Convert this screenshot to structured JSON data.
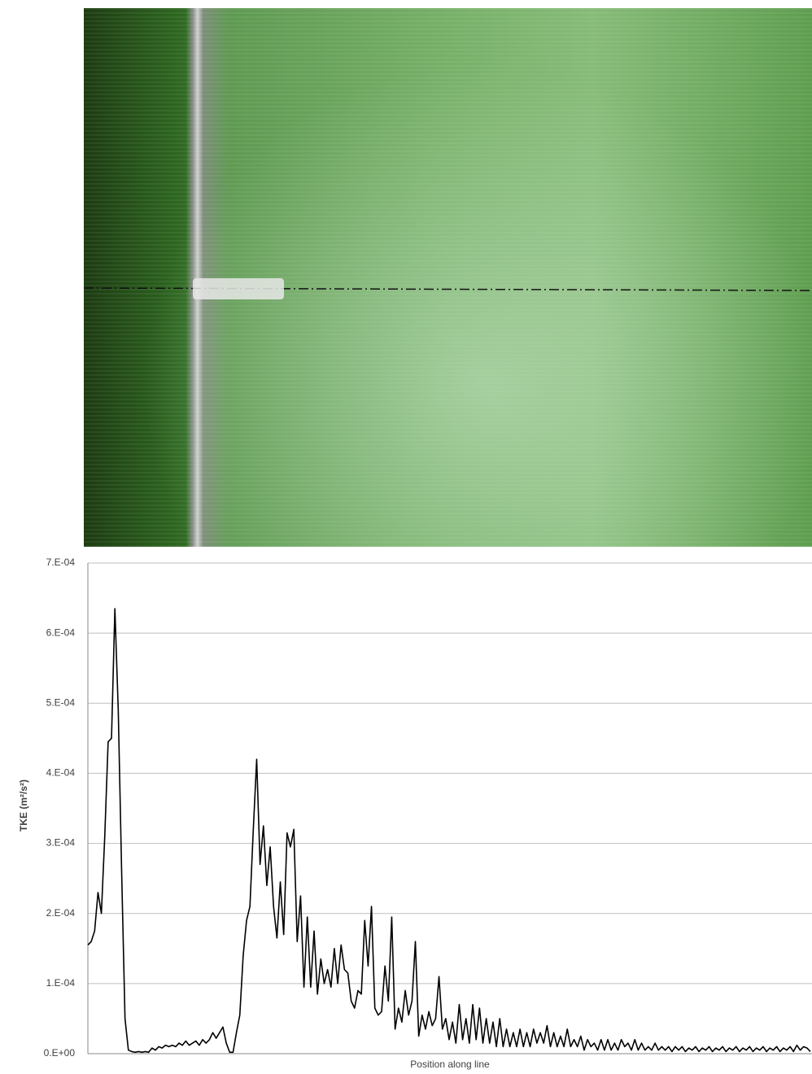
{
  "chart_data": {
    "type": "line",
    "y_label": "TKE (m²/s²)",
    "x_label": "Position along line",
    "ylim": [
      0,
      0.0007
    ],
    "yticks": [
      {
        "value": 0,
        "label": "0.E+00"
      },
      {
        "value": 0.0001,
        "label": "1.E-04"
      },
      {
        "value": 0.0002,
        "label": "2.E-04"
      },
      {
        "value": 0.0003,
        "label": "3.E-04"
      },
      {
        "value": 0.0004,
        "label": "4.E-04"
      },
      {
        "value": 0.0005,
        "label": "5.E-04"
      },
      {
        "value": 0.0006,
        "label": "6.E-04"
      },
      {
        "value": 0.0007,
        "label": "7.E-04"
      }
    ],
    "grid": true,
    "color": "#000000",
    "values": [
      0.000155,
      0.00016,
      0.000175,
      0.00023,
      0.0002,
      0.00031,
      0.000445,
      0.00045,
      0.000635,
      0.00049,
      0.00026,
      5e-05,
      5e-06,
      3e-06,
      2e-06,
      3e-06,
      2e-06,
      3e-06,
      2e-06,
      8e-06,
      5e-06,
      1e-05,
      8e-06,
      1.2e-05,
      1e-05,
      1.2e-05,
      1e-05,
      1.5e-05,
      1.2e-05,
      1.8e-05,
      1.2e-05,
      1.5e-05,
      1.8e-05,
      1.2e-05,
      2e-05,
      1.5e-05,
      2e-05,
      3e-05,
      2.2e-05,
      3e-05,
      3.8e-05,
      1.5e-05,
      2e-06,
      2e-06,
      3e-05,
      5.5e-05,
      0.00014,
      0.00019,
      0.00021,
      0.00032,
      0.00042,
      0.00027,
      0.000325,
      0.00024,
      0.000295,
      0.00021,
      0.000165,
      0.000245,
      0.00017,
      0.000315,
      0.000295,
      0.00032,
      0.00016,
      0.000225,
      9.5e-05,
      0.000195,
      9.5e-05,
      0.000175,
      8.5e-05,
      0.000135,
      0.0001,
      0.00012,
      9.5e-05,
      0.00015,
      0.0001,
      0.000155,
      0.00012,
      0.000115,
      7.5e-05,
      6.5e-05,
      9e-05,
      8.5e-05,
      0.00019,
      0.000125,
      0.00021,
      6.5e-05,
      5.5e-05,
      6e-05,
      0.000125,
      7.5e-05,
      0.000195,
      3.5e-05,
      6.5e-05,
      4.5e-05,
      9e-05,
      5.5e-05,
      7.5e-05,
      0.00016,
      2.5e-05,
      5.5e-05,
      3.5e-05,
      6e-05,
      4e-05,
      5e-05,
      0.00011,
      3.5e-05,
      5e-05,
      2e-05,
      4.5e-05,
      1.5e-05,
      7e-05,
      2e-05,
      5e-05,
      1.5e-05,
      7e-05,
      2e-05,
      6.5e-05,
      1.5e-05,
      5e-05,
      1.5e-05,
      4.5e-05,
      1e-05,
      5e-05,
      1e-05,
      3.5e-05,
      1e-05,
      3e-05,
      1e-05,
      3.5e-05,
      1e-05,
      3e-05,
      1e-05,
      3.5e-05,
      1.5e-05,
      3e-05,
      1.5e-05,
      4e-05,
      1e-05,
      3e-05,
      1e-05,
      2.5e-05,
      1e-05,
      3.5e-05,
      1e-05,
      2e-05,
      1e-05,
      2.5e-05,
      5e-06,
      2e-05,
      1e-05,
      1.5e-05,
      5e-06,
      2e-05,
      5e-06,
      2e-05,
      5e-06,
      1.5e-05,
      5e-06,
      2e-05,
      1e-05,
      1.5e-05,
      5e-06,
      2e-05,
      5e-06,
      1.5e-05,
      5e-06,
      1e-05,
      5e-06,
      1.5e-05,
      5e-06,
      1e-05,
      5e-06,
      1e-05,
      3e-06,
      1e-05,
      5e-06,
      1e-05,
      3e-06,
      8e-06,
      5e-06,
      1e-05,
      3e-06,
      8e-06,
      5e-06,
      1e-05,
      3e-06,
      8e-06,
      5e-06,
      1e-05,
      3e-06,
      8e-06,
      5e-06,
      1e-05,
      3e-06,
      8e-06,
      5e-06,
      1e-05,
      3e-06,
      8e-06,
      5e-06,
      1e-05,
      3e-06,
      8e-06,
      5e-06,
      1e-05,
      3e-06,
      8e-06,
      5e-06,
      1e-05,
      3e-06,
      1.2e-05,
      5e-06,
      1e-05,
      8e-06,
      3e-06
    ]
  }
}
